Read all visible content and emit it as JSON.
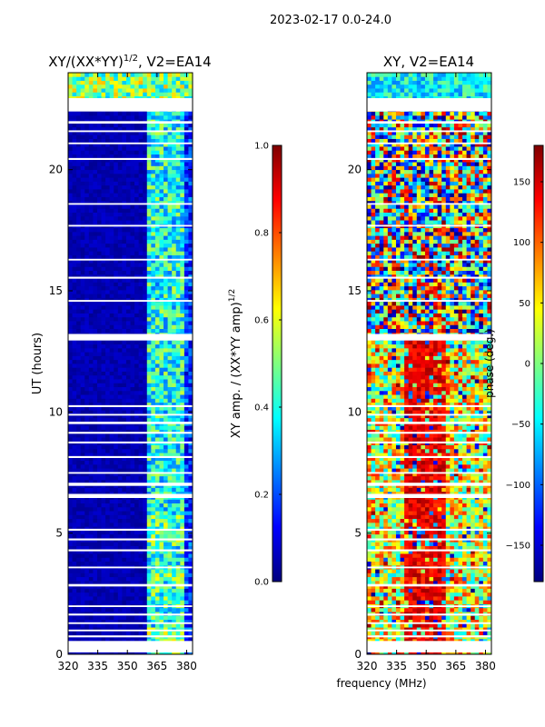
{
  "figure_title": "2023-02-17 0.0-24.0",
  "xlabel_shared": "frequency (MHz)",
  "colors": {
    "jet": [
      "#00007f",
      "#0000ff",
      "#007fff",
      "#00ffff",
      "#7fff7f",
      "#ffff00",
      "#ff7f00",
      "#ff0000",
      "#7f0000"
    ],
    "gap": "#ffffff",
    "frame": "#000000"
  },
  "chart_data": [
    {
      "type": "heatmap",
      "title_main": "XY/(XX*YY)",
      "title_exp": "1/2",
      "title_suffix": ", V2=EA14",
      "xlabel": "",
      "ylabel": "UT (hours)",
      "xlim": [
        320,
        383
      ],
      "ylim": [
        0,
        24
      ],
      "x_ticks": [
        "320",
        "335",
        "350",
        "365",
        "380"
      ],
      "x_tick_values": [
        320,
        335,
        350,
        365,
        380
      ],
      "y_ticks": [
        "0",
        "5",
        "10",
        "15",
        "20"
      ],
      "y_tick_values": [
        0,
        5,
        10,
        15,
        20
      ],
      "colorbar": {
        "label_main": "XY amp. / (XX*YY amp)",
        "label_exp": "1/2",
        "range": [
          0.0,
          1.0
        ],
        "ticks": [
          "0.0",
          "0.2",
          "0.4",
          "0.6",
          "0.8",
          "1.0"
        ],
        "tick_values": [
          0.0,
          0.2,
          0.4,
          0.6,
          0.8,
          1.0
        ]
      },
      "description": "Low normalized amplitude (~0.05) across 320-360 MHz; elevated amplitude (~0.3-0.5) in 361-378 MHz; higher values (~0.3-0.6) in 22-24 h",
      "data_gaps_hours": [
        [
          0.08,
          0.55
        ],
        [
          0.7,
          0.78
        ],
        [
          0.95,
          1.02
        ],
        [
          1.25,
          1.32
        ],
        [
          1.6,
          1.68
        ],
        [
          1.95,
          2.02
        ],
        [
          2.8,
          2.9
        ],
        [
          3.55,
          3.62
        ],
        [
          4.25,
          4.33
        ],
        [
          4.7,
          4.78
        ],
        [
          5.1,
          5.18
        ],
        [
          6.45,
          6.62
        ],
        [
          6.95,
          7.08
        ],
        [
          7.45,
          7.52
        ],
        [
          8.1,
          8.18
        ],
        [
          8.7,
          8.78
        ],
        [
          9.1,
          9.18
        ],
        [
          9.5,
          9.6
        ],
        [
          9.85,
          9.92
        ],
        [
          10.2,
          10.28
        ],
        [
          12.95,
          13.22
        ],
        [
          14.55,
          14.62
        ],
        [
          15.5,
          15.58
        ],
        [
          16.25,
          16.32
        ],
        [
          17.65,
          17.72
        ],
        [
          18.55,
          18.62
        ],
        [
          20.4,
          20.48
        ],
        [
          21.05,
          21.12
        ],
        [
          21.55,
          21.62
        ],
        [
          21.9,
          22.0
        ],
        [
          22.4,
          22.95
        ]
      ]
    },
    {
      "type": "heatmap",
      "title_main": "XY, V2=EA14",
      "xlabel": "frequency (MHz)",
      "ylabel": "",
      "xlim": [
        320,
        383
      ],
      "ylim": [
        0,
        24
      ],
      "x_ticks": [
        "320",
        "335",
        "350",
        "365",
        "380"
      ],
      "x_tick_values": [
        320,
        335,
        350,
        365,
        380
      ],
      "y_ticks": [
        "0",
        "5",
        "10",
        "15",
        "20"
      ],
      "y_tick_values": [
        0,
        5,
        10,
        15,
        20
      ],
      "colorbar": {
        "label": "phase (deg.)",
        "range": [
          -180,
          180
        ],
        "ticks": [
          "−150",
          "−100",
          "−50",
          "0",
          "50",
          "100",
          "150"
        ],
        "tick_values": [
          -150,
          -100,
          -50,
          0,
          50,
          100,
          150
        ]
      },
      "description": "Phase noisy at 13.3-21 h; coherent phase structure (~+120 to +180 deg) around 335-360 MHz below 13 h",
      "data_gaps_hours": [
        [
          0.08,
          0.55
        ],
        [
          0.7,
          0.78
        ],
        [
          0.95,
          1.02
        ],
        [
          1.25,
          1.32
        ],
        [
          1.6,
          1.68
        ],
        [
          1.95,
          2.02
        ],
        [
          2.8,
          2.9
        ],
        [
          3.55,
          3.62
        ],
        [
          4.25,
          4.33
        ],
        [
          4.7,
          4.78
        ],
        [
          5.1,
          5.18
        ],
        [
          6.45,
          6.62
        ],
        [
          6.95,
          7.08
        ],
        [
          7.45,
          7.52
        ],
        [
          8.1,
          8.18
        ],
        [
          8.7,
          8.78
        ],
        [
          9.1,
          9.18
        ],
        [
          9.5,
          9.6
        ],
        [
          9.85,
          9.92
        ],
        [
          10.2,
          10.28
        ],
        [
          12.95,
          13.22
        ],
        [
          14.55,
          14.62
        ],
        [
          15.5,
          15.58
        ],
        [
          16.25,
          16.32
        ],
        [
          17.65,
          17.72
        ],
        [
          18.55,
          18.62
        ],
        [
          20.4,
          20.48
        ],
        [
          21.05,
          21.12
        ],
        [
          21.55,
          21.62
        ],
        [
          21.9,
          22.0
        ],
        [
          22.4,
          22.95
        ]
      ]
    }
  ]
}
